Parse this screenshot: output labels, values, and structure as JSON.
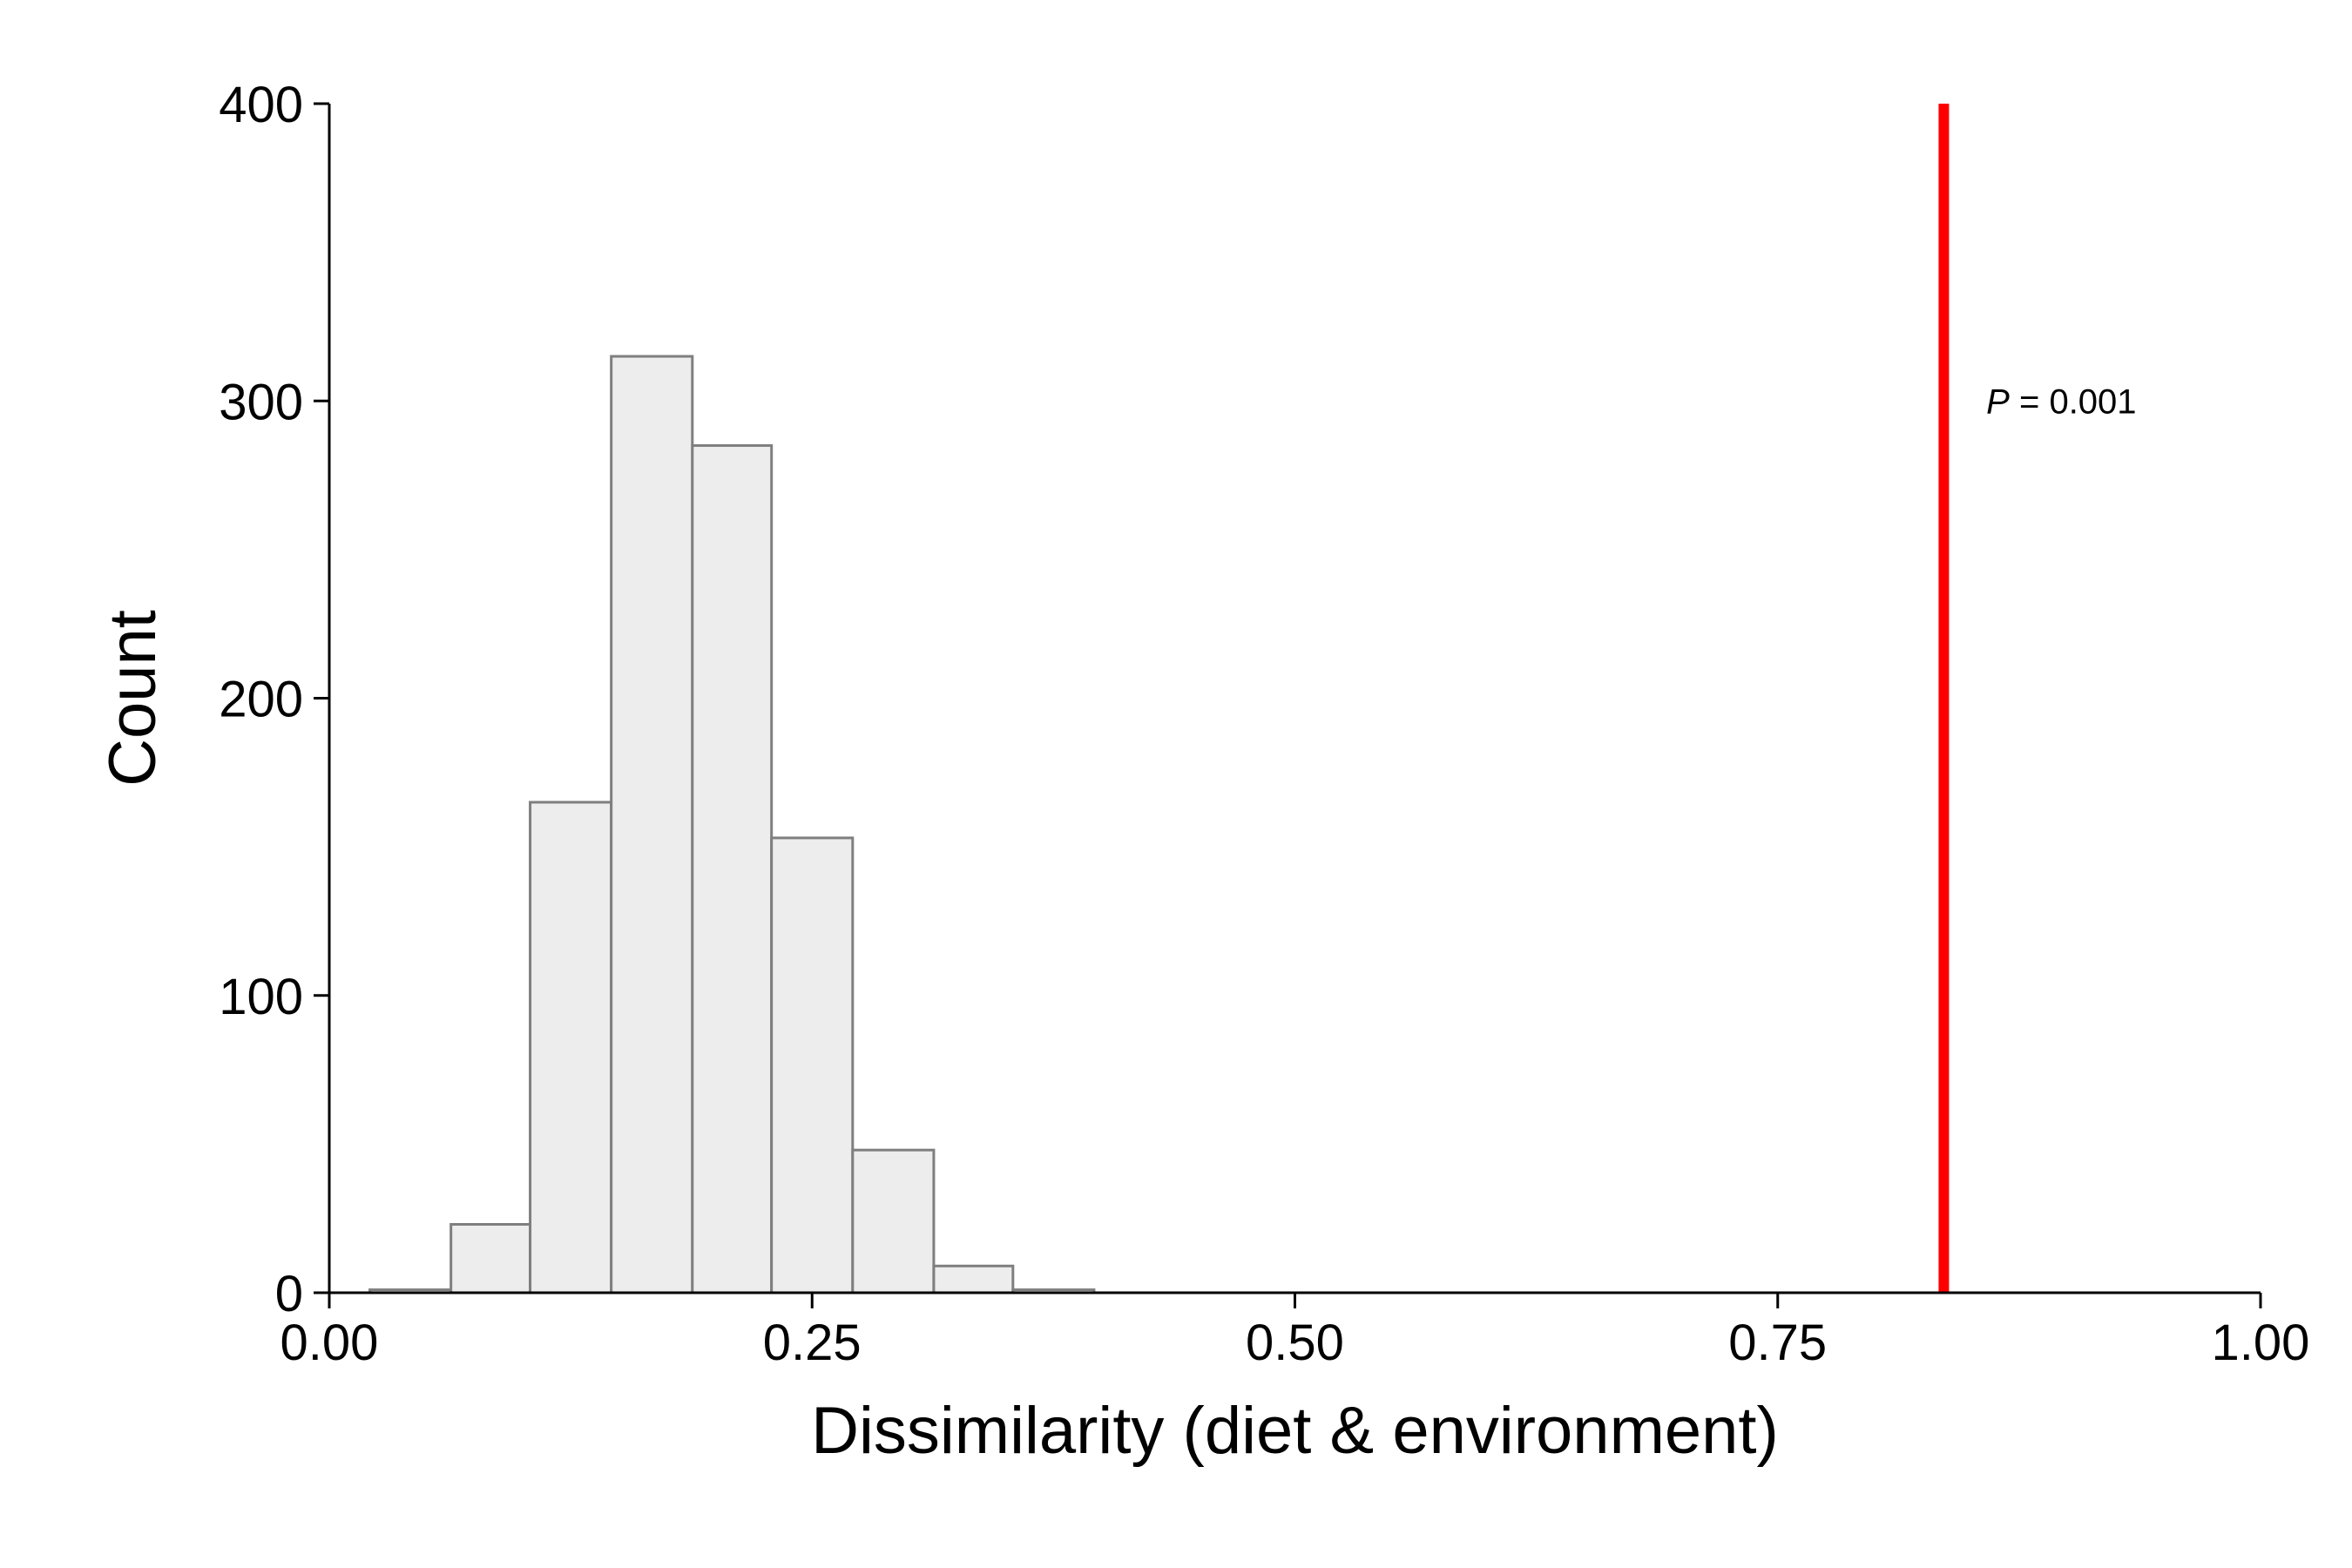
{
  "chart_data": {
    "type": "bar",
    "subtype": "histogram",
    "xlabel": "Dissimilarity (diet & environment)",
    "ylabel": "Count",
    "xlim": [
      0,
      1
    ],
    "ylim": [
      0,
      400
    ],
    "x_ticks": [
      {
        "value": 0,
        "label": "0.00"
      },
      {
        "value": 0.25,
        "label": "0.25"
      },
      {
        "value": 0.5,
        "label": "0.50"
      },
      {
        "value": 0.75,
        "label": "0.75"
      },
      {
        "value": 1,
        "label": "1.00"
      }
    ],
    "y_ticks": [
      {
        "value": 0,
        "label": "0"
      },
      {
        "value": 100,
        "label": "100"
      },
      {
        "value": 200,
        "label": "200"
      },
      {
        "value": 300,
        "label": "300"
      },
      {
        "value": 400,
        "label": "400"
      }
    ],
    "bins": [
      {
        "x0": 0.021,
        "x1": 0.063,
        "count": 1
      },
      {
        "x0": 0.063,
        "x1": 0.104,
        "count": 23
      },
      {
        "x0": 0.104,
        "x1": 0.146,
        "count": 165
      },
      {
        "x0": 0.146,
        "x1": 0.188,
        "count": 315
      },
      {
        "x0": 0.188,
        "x1": 0.229,
        "count": 285
      },
      {
        "x0": 0.229,
        "x1": 0.271,
        "count": 153
      },
      {
        "x0": 0.271,
        "x1": 0.313,
        "count": 48
      },
      {
        "x0": 0.313,
        "x1": 0.354,
        "count": 9
      },
      {
        "x0": 0.354,
        "x1": 0.396,
        "count": 1
      }
    ],
    "bar_fill": "#ededed",
    "bar_stroke": "#7f7f7f",
    "grid": false,
    "observed_line": {
      "x": 0.836,
      "color": "#ff0000"
    },
    "annotation": {
      "italic_part": "P",
      "rest": " = 0.001",
      "x": 0.858,
      "y": 300
    }
  }
}
